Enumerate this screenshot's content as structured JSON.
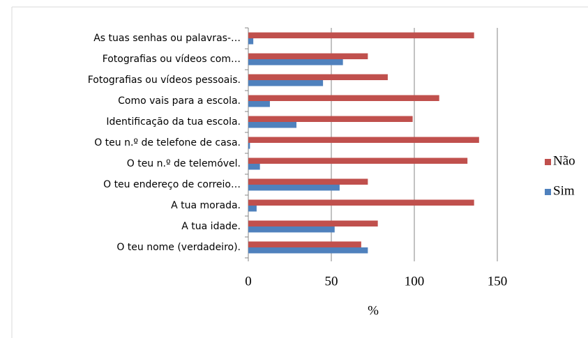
{
  "chart_data": {
    "type": "bar",
    "orientation": "horizontal",
    "categories": [
      "O teu nome (verdadeiro).",
      "A tua idade.",
      "A tua morada.",
      "O teu endereço de correio…",
      "O teu n.º de telemóvel.",
      "O teu n.º de telefone de casa.",
      "Identificação da tua escola.",
      "Como vais para a escola.",
      "Fotografias ou vídeos pessoais.",
      "Fotografias ou vídeos com…",
      "As tuas senhas ou palavras-…"
    ],
    "series": [
      {
        "name": "Sim",
        "color": "#4f81bd",
        "values": [
          72,
          52,
          5,
          55,
          7,
          1,
          29,
          13,
          45,
          57,
          3
        ]
      },
      {
        "name": "Não",
        "color": "#c0504d",
        "values": [
          68,
          78,
          136,
          72,
          132,
          139,
          99,
          115,
          84,
          72,
          136
        ]
      }
    ],
    "xlabel": "%",
    "xlim": [
      0,
      150
    ],
    "xticks": [
      0,
      50,
      100,
      150
    ],
    "grid": true,
    "legend": "right"
  }
}
